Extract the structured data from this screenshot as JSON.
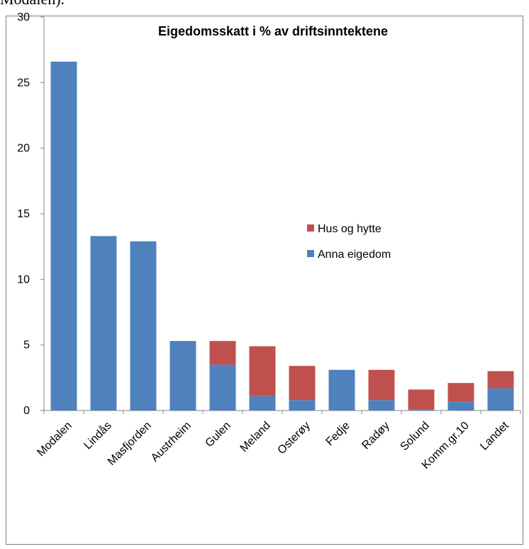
{
  "page": {
    "top_text": "Modalen)."
  },
  "chart_data": {
    "type": "bar",
    "stacked": true,
    "title": "Eigedomsskatt i % av driftsinntektene",
    "xlabel": "",
    "ylabel": "",
    "ylim": [
      0,
      30
    ],
    "yticks": [
      0,
      5,
      10,
      15,
      20,
      25,
      30
    ],
    "grid": false,
    "legend_position": "right",
    "categories": [
      "Modalen",
      "Lindås",
      "Masfjorden",
      "Austrheim",
      "Gulen",
      "Meland",
      "Osterøy",
      "Fedje",
      "Radøy",
      "Solund",
      "Komm.gr.10",
      "Landet"
    ],
    "series": [
      {
        "name": "Anna eigedom",
        "color": "#4f81bd",
        "values": [
          26.6,
          13.3,
          12.9,
          5.3,
          3.5,
          1.1,
          0.8,
          3.1,
          0.8,
          0.1,
          0.7,
          1.7
        ]
      },
      {
        "name": "Hus og hytte",
        "color": "#c0504d",
        "values": [
          0,
          0,
          0,
          0,
          1.8,
          3.8,
          2.6,
          0,
          2.3,
          1.5,
          1.4,
          1.3
        ]
      }
    ],
    "legend_order": [
      "Hus og hytte",
      "Anna eigedom"
    ]
  }
}
